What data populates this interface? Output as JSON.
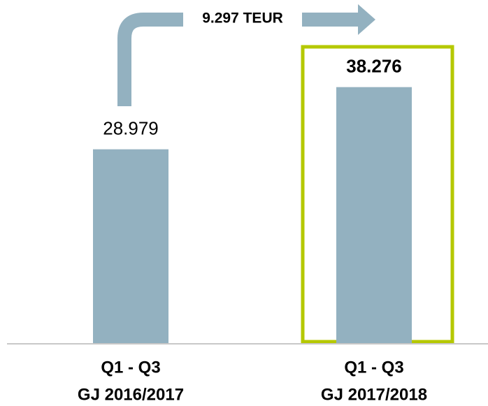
{
  "chart_data": {
    "type": "bar",
    "categories": [
      [
        "Q1 - Q3",
        "GJ 2016/2017"
      ],
      [
        "Q1 - Q3",
        "GJ 2017/2018"
      ]
    ],
    "values": [
      28979,
      38276
    ],
    "value_labels": [
      "28.979",
      "38.276"
    ],
    "color": "#93b1c0",
    "ylim": [
      0,
      51300
    ],
    "annotation": "9.297 TEUR"
  }
}
